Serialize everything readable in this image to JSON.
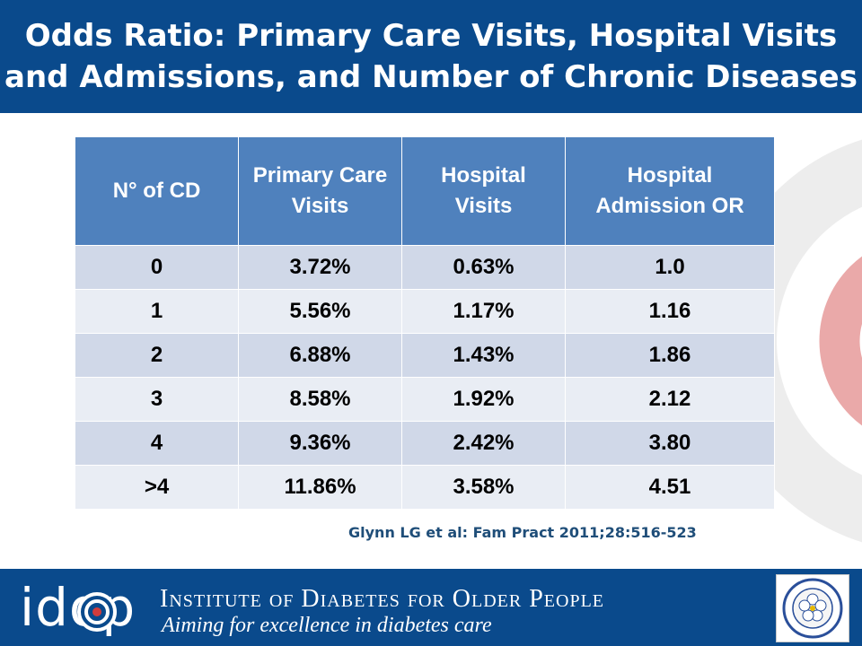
{
  "slide": {
    "title": "Odds Ratio: Primary Care Visits, Hospital Visits and Admissions, and Number of Chronic Diseases",
    "citation": "Glynn LG et al: Fam Pract 2011;28:516-523"
  },
  "table": {
    "headers": [
      "N° of CD",
      "Primary Care Visits",
      "Hospital Visits",
      "Hospital Admission OR"
    ],
    "rows": [
      [
        "0",
        "3.72%",
        "0.63%",
        "1.0"
      ],
      [
        "1",
        "5.56%",
        "1.17%",
        "1.16"
      ],
      [
        "2",
        "6.88%",
        "1.43%",
        "1.86"
      ],
      [
        "3",
        "8.58%",
        "1.92%",
        "2.12"
      ],
      [
        "4",
        "9.36%",
        "2.42%",
        "3.80"
      ],
      [
        ">4",
        "11.86%",
        "3.58%",
        "4.51"
      ]
    ]
  },
  "footer": {
    "logo_text": "idop",
    "institute_name": "Institute of Diabetes for Older People",
    "tagline": "Aiming for excellence in diabetes care",
    "badge_icon": "association-seal-icon"
  },
  "colors": {
    "brand_blue": "#0a4a8c",
    "header_cell": "#4f81bd",
    "row_odd": "#d0d8e8",
    "row_even": "#e9edf4",
    "accent_red": "#e8a7a7"
  }
}
